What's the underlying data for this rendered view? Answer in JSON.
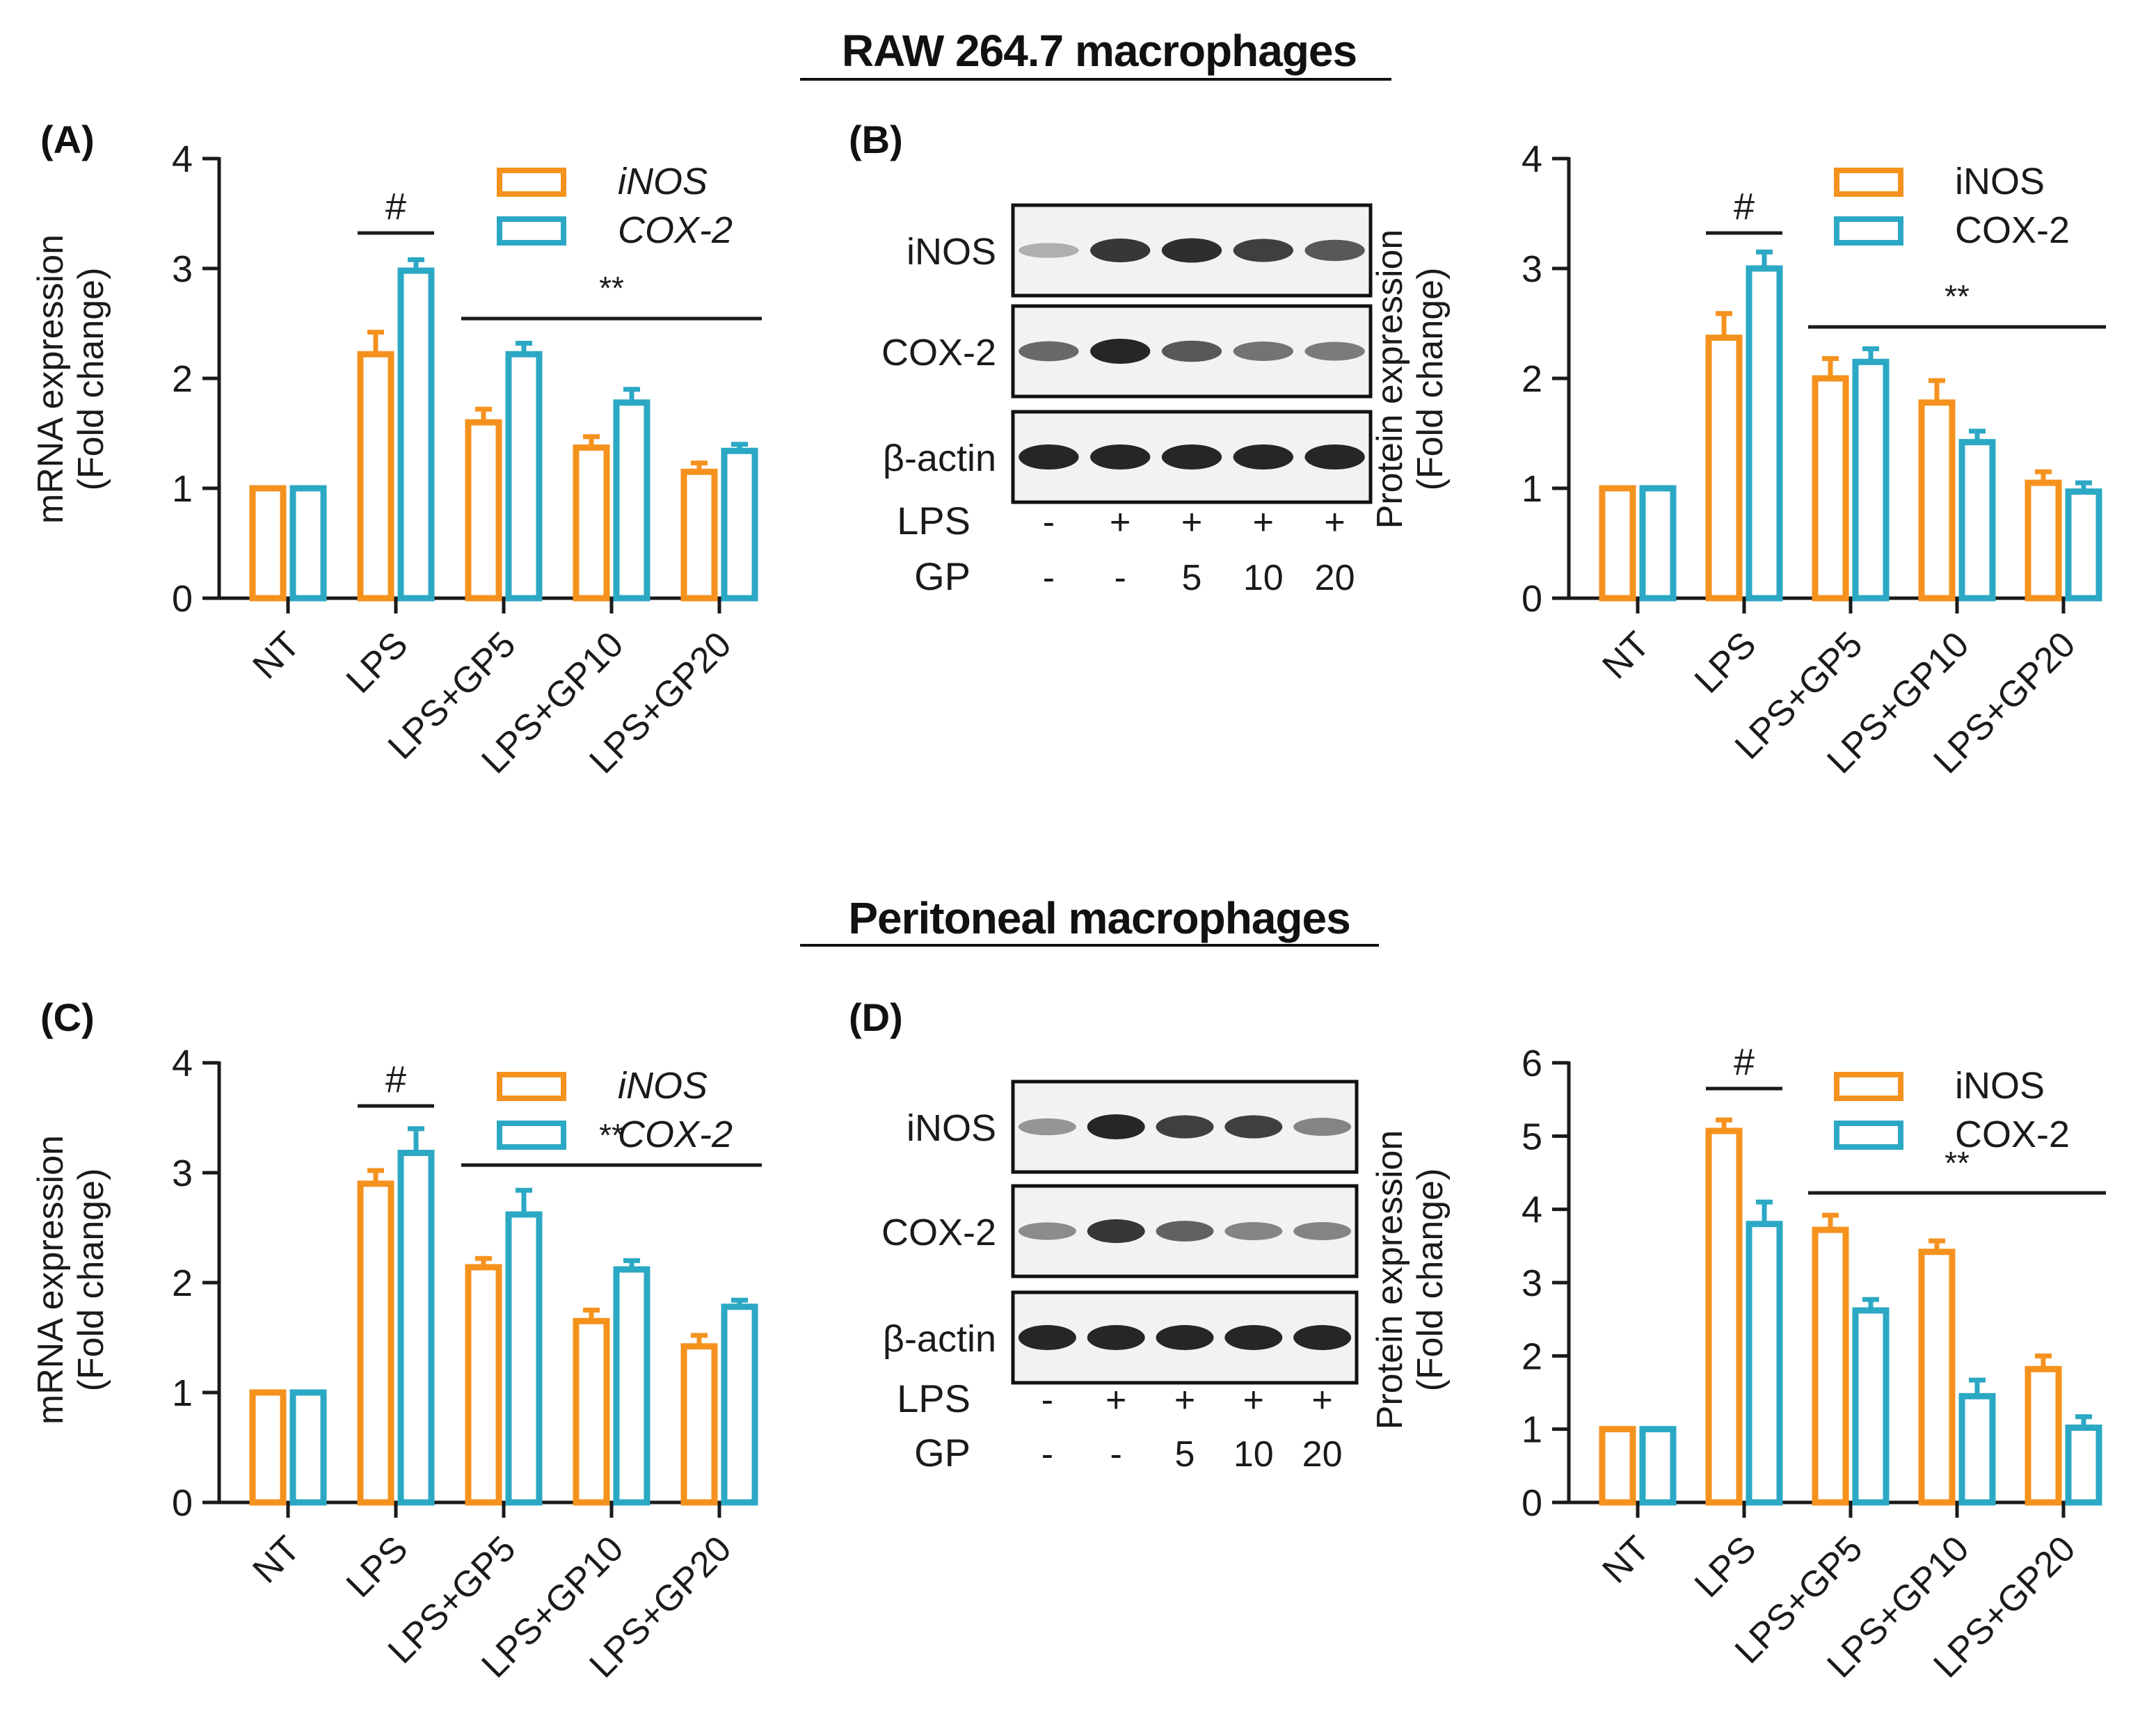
{
  "sections": {
    "top": {
      "title": "RAW 264.7 macrophages"
    },
    "bottom": {
      "title": "Peritoneal macrophages"
    }
  },
  "panel_labels": {
    "A": "(A)",
    "B": "(B)",
    "C": "(C)",
    "D": "(D)"
  },
  "colors": {
    "iNOS": "#F5921E",
    "COX2": "#2BA8C4",
    "ink": "#1a1a1a"
  },
  "chart_data": [
    {
      "id": "A",
      "type": "bar",
      "categories": [
        "NT",
        "LPS",
        "LPS+GP5",
        "LPS+GP10",
        "LPS+GP20"
      ],
      "series": [
        {
          "name": "iNOS",
          "values": [
            1.0,
            2.22,
            1.6,
            1.37,
            1.15
          ],
          "errors": [
            0,
            0.2,
            0.12,
            0.1,
            0.08
          ]
        },
        {
          "name": "COX-2",
          "values": [
            1.0,
            2.98,
            2.22,
            1.78,
            1.34
          ],
          "errors": [
            0,
            0.1,
            0.1,
            0.12,
            0.06
          ]
        }
      ],
      "ylabel": [
        "mRNA expression",
        "(Fold change)"
      ],
      "yticks": [
        "0",
        "1",
        "2",
        "3",
        "4"
      ],
      "ylim": [
        0,
        4
      ],
      "legend": [
        "iNOS",
        "COX-2"
      ],
      "legend_italic": true,
      "sig_hash": {
        "text": "#",
        "at": "LPS"
      },
      "sig_star": {
        "text": "**",
        "from": "LPS+GP5",
        "to": "LPS+GP20"
      }
    },
    {
      "id": "B",
      "type": "bar",
      "categories": [
        "NT",
        "LPS",
        "LPS+GP5",
        "LPS+GP10",
        "LPS+GP20"
      ],
      "series": [
        {
          "name": "iNOS",
          "values": [
            1.0,
            2.37,
            2.0,
            1.78,
            1.05
          ],
          "errors": [
            0,
            0.22,
            0.18,
            0.2,
            0.1
          ]
        },
        {
          "name": "COX-2",
          "values": [
            1.0,
            3.0,
            2.15,
            1.42,
            0.97
          ],
          "errors": [
            0,
            0.15,
            0.12,
            0.1,
            0.08
          ]
        }
      ],
      "ylabel": [
        "Protein expression",
        "(Fold change)"
      ],
      "yticks": [
        "0",
        "1",
        "2",
        "3",
        "4"
      ],
      "ylim": [
        0,
        4
      ],
      "legend": [
        "iNOS",
        "COX-2"
      ],
      "legend_italic": false,
      "sig_hash": {
        "text": "#",
        "at": "LPS"
      },
      "sig_star": {
        "text": "**",
        "from": "LPS+GP5",
        "to": "LPS+GP20"
      }
    },
    {
      "id": "C",
      "type": "bar",
      "categories": [
        "NT",
        "LPS",
        "LPS+GP5",
        "LPS+GP10",
        "LPS+GP20"
      ],
      "series": [
        {
          "name": "iNOS",
          "values": [
            1.0,
            2.9,
            2.14,
            1.65,
            1.42
          ],
          "errors": [
            0,
            0.12,
            0.08,
            0.1,
            0.1
          ]
        },
        {
          "name": "COX-2",
          "values": [
            1.0,
            3.18,
            2.62,
            2.12,
            1.78
          ],
          "errors": [
            0,
            0.22,
            0.22,
            0.08,
            0.06
          ]
        }
      ],
      "ylabel": [
        "mRNA expression",
        "(Fold change)"
      ],
      "yticks": [
        "0",
        "1",
        "2",
        "3",
        "4"
      ],
      "ylim": [
        0,
        4
      ],
      "legend": [
        "iNOS",
        "COX-2"
      ],
      "legend_italic": true,
      "sig_hash": {
        "text": "#",
        "at": "LPS"
      },
      "sig_star": {
        "text": "**",
        "from": "LPS+GP5",
        "to": "LPS+GP20"
      }
    },
    {
      "id": "D",
      "type": "bar",
      "categories": [
        "NT",
        "LPS",
        "LPS+GP5",
        "LPS+GP10",
        "LPS+GP20"
      ],
      "series": [
        {
          "name": "iNOS",
          "values": [
            1.0,
            5.07,
            3.72,
            3.42,
            1.82
          ],
          "errors": [
            0,
            0.15,
            0.2,
            0.15,
            0.18
          ]
        },
        {
          "name": "COX-2",
          "values": [
            1.0,
            3.8,
            2.62,
            1.45,
            1.02
          ],
          "errors": [
            0,
            0.3,
            0.15,
            0.22,
            0.15
          ]
        }
      ],
      "ylabel": [
        "Protein expression",
        "(Fold change)"
      ],
      "yticks": [
        "0",
        "1",
        "2",
        "3",
        "4",
        "5",
        "6"
      ],
      "ylim": [
        0,
        6
      ],
      "legend": [
        "iNOS",
        "COX-2"
      ],
      "legend_italic": false,
      "sig_hash": {
        "text": "#",
        "at": "LPS"
      },
      "sig_star": {
        "text": "**",
        "from": "LPS+GP5",
        "to": "LPS+GP20"
      }
    }
  ],
  "blots": [
    {
      "id": "B",
      "rows": [
        "iNOS",
        "COX-2",
        "β-actin"
      ],
      "intensity": [
        [
          0.2,
          0.9,
          0.95,
          0.85,
          0.7
        ],
        [
          0.6,
          1.0,
          0.7,
          0.55,
          0.5
        ],
        [
          1.0,
          1.0,
          1.0,
          1.0,
          1.0
        ]
      ],
      "treatments": [
        {
          "label": "LPS",
          "values": [
            "-",
            "+",
            "+",
            "+",
            "+"
          ]
        },
        {
          "label": "GP",
          "values": [
            "-",
            "-",
            "5",
            "10",
            "20"
          ]
        }
      ]
    },
    {
      "id": "D",
      "rows": [
        "iNOS",
        "COX-2",
        "β-actin"
      ],
      "intensity": [
        [
          0.35,
          1.0,
          0.85,
          0.85,
          0.45
        ],
        [
          0.4,
          0.9,
          0.65,
          0.45,
          0.45
        ],
        [
          1.0,
          1.0,
          1.0,
          1.0,
          1.0
        ]
      ],
      "treatments": [
        {
          "label": "LPS",
          "values": [
            "-",
            "+",
            "+",
            "+",
            "+"
          ]
        },
        {
          "label": "GP",
          "values": [
            "-",
            "-",
            "5",
            "10",
            "20"
          ]
        }
      ]
    }
  ]
}
